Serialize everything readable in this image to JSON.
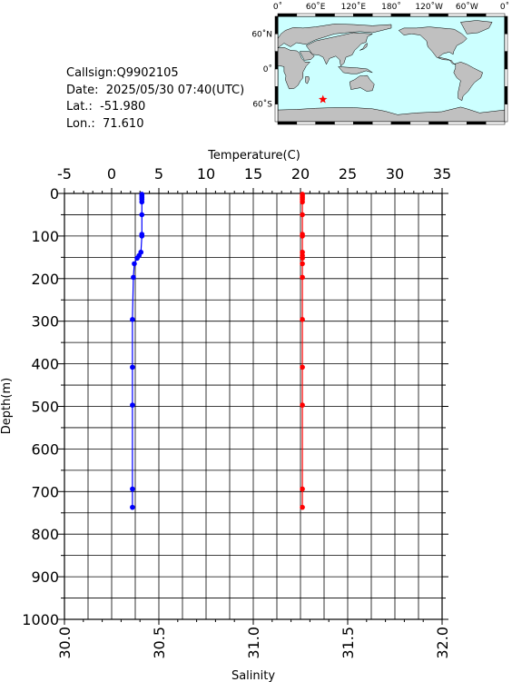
{
  "info": {
    "callsign": "Callsign:Q9902105",
    "date": "Date:  2025/05/30 07:40(UTC)",
    "lat": "Lat.:  -51.980",
    "lon": "Lon.:  71.610"
  },
  "map": {
    "lon_labels": [
      "0˚",
      "60˚E",
      "120˚E",
      "180˚",
      "120˚W",
      "60˚W",
      "0˚"
    ],
    "lat_labels": [
      "60˚N",
      "0˚",
      "60˚S"
    ],
    "ocean_color": "#ccffff",
    "land_color": "#c0c0c0",
    "marker": {
      "lon": 71.61,
      "lat": -51.98,
      "color": "#ff0000",
      "icon": "star"
    }
  },
  "chart_data": {
    "type": "line",
    "top_axis_label": "Temperature(C)",
    "bottom_axis_label": "Salinity",
    "y_axis_label": "Depth(m)",
    "temperature_ticks": [
      -5,
      0,
      5,
      10,
      15,
      20,
      25,
      30,
      35
    ],
    "salinity_ticks": [
      "30.0",
      "30.5",
      "31.0",
      "31.5",
      "32.0"
    ],
    "depth_ticks": [
      0,
      100,
      200,
      300,
      400,
      500,
      600,
      700,
      800,
      900,
      1000
    ],
    "temperature_range": [
      -5,
      35
    ],
    "salinity_range": [
      30.0,
      32.0
    ],
    "depth_range": [
      0,
      1000
    ],
    "grid": true,
    "series": [
      {
        "color": "#0000ff",
        "x_axis": "salinity",
        "depth": [
          2,
          6,
          10,
          14,
          20,
          50,
          96,
          100,
          138,
          146,
          152,
          165,
          197,
          296,
          408,
          497,
          694,
          737
        ],
        "values": [
          30.41,
          30.41,
          30.41,
          30.41,
          30.41,
          30.41,
          30.41,
          30.41,
          30.405,
          30.395,
          30.385,
          30.37,
          30.365,
          30.36,
          30.36,
          30.36,
          30.36,
          30.36
        ]
      },
      {
        "color": "#ff0000",
        "x_axis": "salinity",
        "depth": [
          2,
          6,
          10,
          14,
          20,
          50,
          96,
          100,
          138,
          146,
          152,
          165,
          197,
          296,
          408,
          497,
          694,
          737
        ],
        "values": [
          31.26,
          31.26,
          31.26,
          31.26,
          31.26,
          31.26,
          31.26,
          31.26,
          31.26,
          31.26,
          31.26,
          31.26,
          31.26,
          31.26,
          31.26,
          31.26,
          31.26,
          31.26
        ]
      }
    ]
  }
}
